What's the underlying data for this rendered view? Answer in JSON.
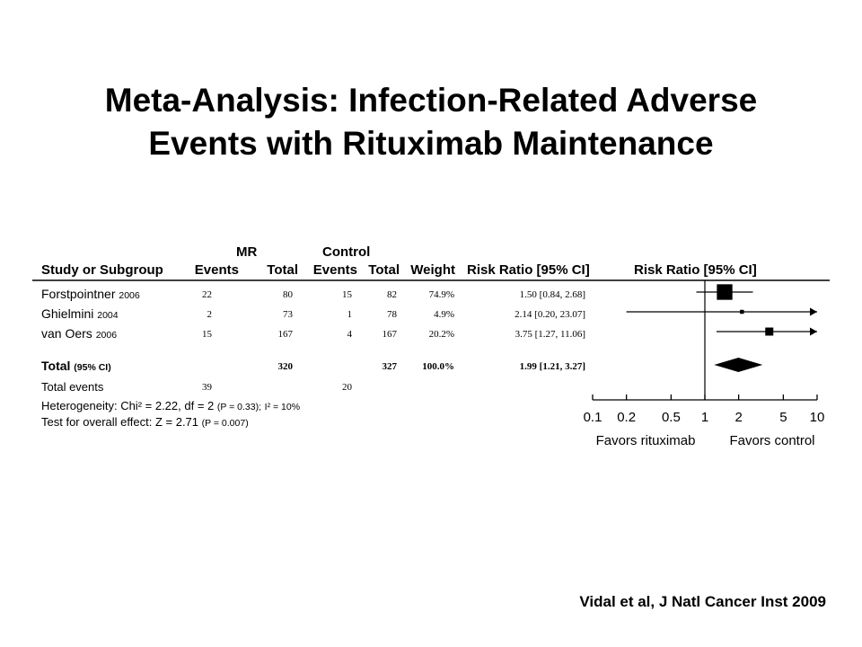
{
  "slide": {
    "title_line1": "Meta-Analysis: Infection-Related Adverse",
    "title_line2": "Events with Rituximab Maintenance",
    "citation": "Vidal et al, J Natl Cancer Inst 2009"
  },
  "table": {
    "group_headers": {
      "mr": "MR",
      "control": "Control"
    },
    "columns": {
      "study": "Study or Subgroup",
      "mr_events": "Events",
      "mr_total": "Total",
      "ctrl_events": "Events",
      "ctrl_total": "Total",
      "weight": "Weight",
      "rr": "Risk Ratio [95% CI]",
      "plot": "Risk Ratio [95% CI]"
    },
    "rows": [
      {
        "study": "Forstpointner",
        "year": "2006",
        "mr_events": "22",
        "mr_total": "80",
        "ctrl_events": "15",
        "ctrl_total": "82",
        "weight": "74.9%",
        "rr": "1.50 [0.84, 2.68]"
      },
      {
        "study": "Ghielmini",
        "year": "2004",
        "mr_events": "2",
        "mr_total": "73",
        "ctrl_events": "1",
        "ctrl_total": "78",
        "weight": "4.9%",
        "rr": "2.14 [0.20, 23.07]"
      },
      {
        "study": "van Oers",
        "year": "2006",
        "mr_events": "15",
        "mr_total": "167",
        "ctrl_events": "4",
        "ctrl_total": "167",
        "weight": "20.2%",
        "rr": "3.75 [1.27, 11.06]"
      }
    ],
    "total": {
      "label": "Total",
      "ci_label": "(95% CI)",
      "mr_total": "320",
      "ctrl_total": "327",
      "weight": "100.0%",
      "rr": "1.99 [1.21, 3.27]"
    },
    "total_events": {
      "label": "Total events",
      "mr": "39",
      "ctrl": "20"
    },
    "heterogeneity": {
      "label": "Heterogeneity:",
      "chi_part": "Chi² = 2.22, df = 2",
      "p_part": "(P = 0.33);",
      "i2_part": "I² = 10%"
    },
    "overall_effect": {
      "label": "Test for overall effect:",
      "z_part": "Z = 2.71",
      "p_part": "(P = 0.007)"
    }
  },
  "chart_data": {
    "type": "forest",
    "title": "Risk Ratio [95% CI]",
    "xscale": "log",
    "xlim": [
      0.1,
      10
    ],
    "xticks": [
      "0.1",
      "0.2",
      "0.5",
      "1",
      "2",
      "5",
      "10"
    ],
    "xtick_values": [
      0.1,
      0.2,
      0.5,
      1,
      2,
      5,
      10
    ],
    "null_line": 1,
    "direction_labels": {
      "left": "Favors rituximab",
      "right": "Favors control"
    },
    "studies": [
      {
        "name": "Forstpointner 2006",
        "rr": 1.5,
        "lower": 0.84,
        "upper": 2.68,
        "weight": 74.9
      },
      {
        "name": "Ghielmini 2004",
        "rr": 2.14,
        "lower": 0.2,
        "upper": 23.07,
        "weight": 4.9
      },
      {
        "name": "van Oers 2006",
        "rr": 3.75,
        "lower": 1.27,
        "upper": 11.06,
        "weight": 20.2
      }
    ],
    "pooled": {
      "name": "Total (95% CI)",
      "rr": 1.99,
      "lower": 1.21,
      "upper": 3.27
    }
  }
}
